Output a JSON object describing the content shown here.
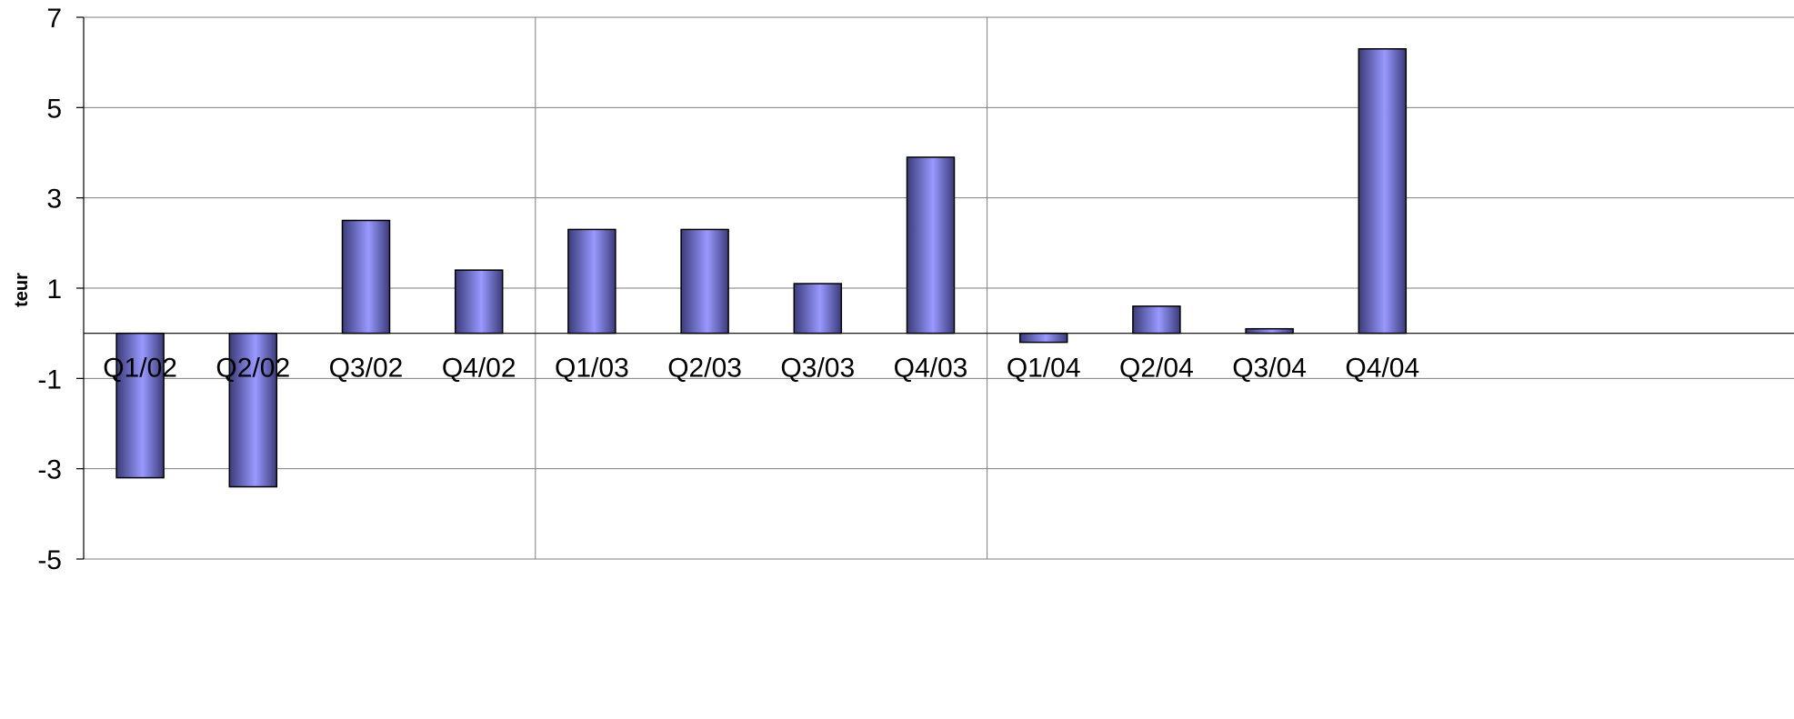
{
  "chart_data": {
    "type": "bar",
    "title": "",
    "xlabel": "",
    "ylabel": "teur",
    "ylim": [
      -5,
      7
    ],
    "yticks": [
      7,
      5,
      3,
      1,
      -1,
      -3,
      -5
    ],
    "grid": true,
    "categories": [
      "Q1/02",
      "Q2/02",
      "Q3/02",
      "Q4/02",
      "Q1/03",
      "Q2/03",
      "Q3/03",
      "Q4/03",
      "Q1/04",
      "Q2/04",
      "Q3/04",
      "Q4/04"
    ],
    "series": [
      {
        "values": [
          -3.2,
          -3.4,
          2.5,
          1.4,
          2.3,
          2.3,
          1.1,
          3.9,
          -0.2,
          0.6,
          0.1,
          6.3
        ]
      }
    ],
    "colors": {
      "bar_light": "#9999ff",
      "bar_dark": "#3b3b7a",
      "bar_edge": "#000000",
      "grid": "#7f7f7f",
      "axis": "#000000"
    }
  }
}
